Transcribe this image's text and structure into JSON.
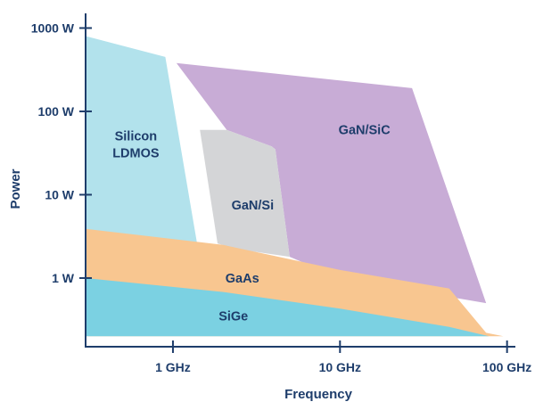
{
  "chart_data": {
    "type": "area",
    "title": "",
    "xlabel": "Frequency",
    "ylabel": "Power",
    "x_scale": "log",
    "y_scale": "log",
    "xlim": [
      0.3,
      130
    ],
    "ylim": [
      0.15,
      1500
    ],
    "x_ticks": [
      {
        "value": 1,
        "label": "1 GHz"
      },
      {
        "value": 10,
        "label": "10 GHz"
      },
      {
        "value": 100,
        "label": "100 GHz"
      }
    ],
    "y_ticks": [
      {
        "value": 1,
        "label": "1 W"
      },
      {
        "value": 10,
        "label": "10 W"
      },
      {
        "value": 100,
        "label": "100 W"
      },
      {
        "value": 1000,
        "label": "1000 W"
      }
    ],
    "grid": false,
    "legend": "none",
    "series": [
      {
        "id": "ldmos",
        "name": "Silicon\nLDMOS",
        "color": "#b2e2ec",
        "label_at": [
          0.6,
          40
        ],
        "points": [
          [
            0.3,
            800
          ],
          [
            0.9,
            450
          ],
          [
            1.4,
            2.5
          ],
          [
            2.5,
            0.3
          ],
          [
            0.3,
            0.3
          ]
        ]
      },
      {
        "id": "gansic",
        "name": "GaN/SiC",
        "color": "#c8acd6",
        "label_at": [
          14,
          60
        ],
        "points": [
          [
            1.05,
            380
          ],
          [
            27,
            190
          ],
          [
            75,
            0.5
          ],
          [
            10,
            1.0
          ],
          [
            5.0,
            1.8
          ],
          [
            4.1,
            35
          ],
          [
            3.9,
            38
          ],
          [
            2.1,
            60
          ]
        ]
      },
      {
        "id": "gansi",
        "name": "GaN/Si",
        "color": "#d4d5d7",
        "label_at": [
          3.0,
          7.5
        ],
        "points": [
          [
            1.45,
            60
          ],
          [
            2.1,
            60
          ],
          [
            3.9,
            38
          ],
          [
            4.1,
            35
          ],
          [
            5.0,
            1.8
          ],
          [
            2.5,
            2.2
          ],
          [
            1.85,
            2.6
          ]
        ]
      },
      {
        "id": "gaas",
        "name": "GaAs",
        "color": "#f8c690",
        "label_at": [
          2.6,
          1.0
        ],
        "points": [
          [
            0.3,
            3.9
          ],
          [
            2.0,
            2.5
          ],
          [
            10,
            1.25
          ],
          [
            45,
            0.75
          ],
          [
            75,
            0.22
          ],
          [
            95,
            0.2
          ],
          [
            0.3,
            0.2
          ]
        ]
      },
      {
        "id": "sige",
        "name": "SiGe",
        "color": "#7bd1e2",
        "label_at": [
          2.3,
          0.35
        ],
        "points": [
          [
            0.3,
            1.0
          ],
          [
            2.0,
            0.68
          ],
          [
            10,
            0.43
          ],
          [
            45,
            0.26
          ],
          [
            78,
            0.2
          ],
          [
            0.3,
            0.2
          ]
        ]
      }
    ]
  }
}
